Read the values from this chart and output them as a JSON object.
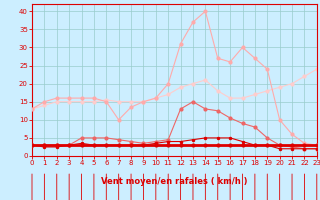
{
  "x": [
    0,
    1,
    2,
    3,
    4,
    5,
    6,
    7,
    8,
    9,
    10,
    11,
    12,
    13,
    14,
    15,
    16,
    17,
    18,
    19,
    20,
    21,
    22,
    23
  ],
  "line_flat": [
    3,
    3,
    3,
    3,
    3,
    3,
    3,
    3,
    3,
    3,
    3,
    3,
    3,
    3,
    3,
    3,
    3,
    3,
    3,
    3,
    3,
    3,
    3,
    3
  ],
  "line_small": [
    3,
    2.5,
    2.5,
    3,
    3.5,
    3,
    3,
    3,
    3,
    3,
    3.5,
    4,
    4,
    4.5,
    5,
    5,
    5,
    4,
    3,
    3,
    2,
    2,
    2,
    2
  ],
  "line_med": [
    3,
    3,
    3,
    3,
    5,
    5,
    5,
    4.5,
    4,
    3.5,
    4,
    4.5,
    13,
    15,
    13,
    12.5,
    10.5,
    9,
    8,
    5,
    3,
    2.5,
    2,
    2
  ],
  "line_high": [
    13,
    15,
    16,
    16,
    16,
    16,
    15,
    10,
    13.5,
    15,
    16,
    20,
    31,
    37,
    40,
    27,
    26,
    30,
    27,
    24,
    10,
    6,
    3.5,
    3
  ],
  "line_slope": [
    13,
    14,
    15,
    15,
    15,
    15,
    15.5,
    15,
    15,
    15,
    16,
    17,
    19,
    20,
    21,
    18,
    16,
    16,
    17,
    18,
    19,
    20,
    22,
    24
  ],
  "bg_color": "#cceeff",
  "grid_color": "#99cccc",
  "col_dark_red": "#dd0000",
  "col_med_red": "#ee6666",
  "col_light_red": "#ffaaaa",
  "col_vlight_red": "#ffcccc",
  "xlabel": "Vent moyen/en rafales ( km/h )",
  "ylim": [
    0,
    42
  ],
  "xlim": [
    0,
    23
  ],
  "yticks": [
    0,
    5,
    10,
    15,
    20,
    25,
    30,
    35,
    40
  ],
  "xticks": [
    0,
    1,
    2,
    3,
    4,
    5,
    6,
    7,
    8,
    9,
    10,
    11,
    12,
    13,
    14,
    15,
    16,
    17,
    18,
    19,
    20,
    21,
    22,
    23
  ]
}
